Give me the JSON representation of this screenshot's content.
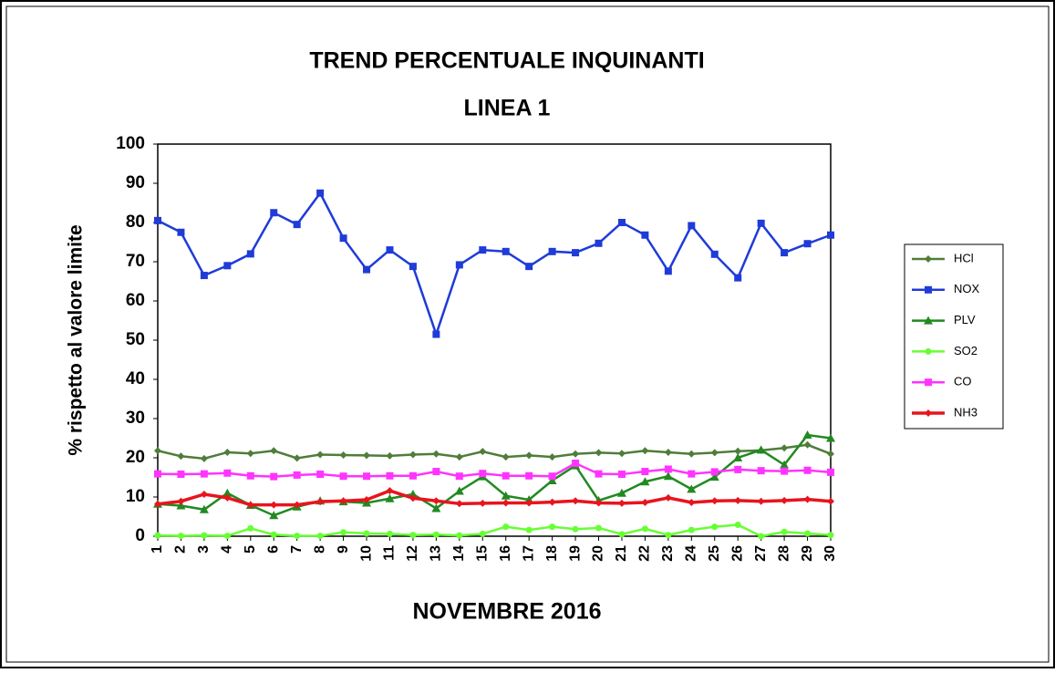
{
  "chart_data": {
    "type": "line",
    "title": "TREND PERCENTUALE INQUINANTI",
    "subtitle": "LINEA 1",
    "x_label": "NOVEMBRE 2016",
    "y_label": "% rispetto al valore limite",
    "categories": [
      "1",
      "2",
      "3",
      "4",
      "5",
      "6",
      "7",
      "8",
      "9",
      "10",
      "11",
      "12",
      "13",
      "14",
      "15",
      "16",
      "17",
      "18",
      "19",
      "20",
      "21",
      "22",
      "23",
      "24",
      "25",
      "26",
      "27",
      "28",
      "29",
      "30"
    ],
    "ylim": [
      0,
      100
    ],
    "yticks": [
      0,
      10,
      20,
      30,
      40,
      50,
      60,
      70,
      80,
      90,
      100
    ],
    "grid": false,
    "legend": "right",
    "series": [
      {
        "name": "HCl",
        "color": "#4f7d3a",
        "marker": "diamond",
        "values": [
          21.8,
          20.4,
          19.8,
          21.4,
          21.1,
          21.8,
          19.9,
          20.8,
          20.7,
          20.6,
          20.5,
          20.8,
          21,
          20.2,
          21.6,
          20.2,
          20.6,
          20.2,
          21,
          21.3,
          21.1,
          21.8,
          21.4,
          21,
          21.3,
          21.7,
          21.9,
          22.5,
          23.3,
          21
        ]
      },
      {
        "name": "NOX",
        "color": "#1f3bd8",
        "marker": "square",
        "values": [
          80.5,
          77.5,
          66.5,
          69,
          72,
          82.5,
          79.5,
          87.5,
          76,
          68,
          73,
          68.8,
          51.5,
          69.2,
          73,
          72.6,
          68.8,
          72.6,
          72.3,
          74.7,
          80,
          76.8,
          67.6,
          79.2,
          71.9,
          65.9,
          79.8,
          72.3,
          74.6,
          76.8
        ]
      },
      {
        "name": "PLV",
        "color": "#218a21",
        "marker": "triangle",
        "values": [
          8.2,
          7.8,
          6.8,
          11,
          7.9,
          5.3,
          7.5,
          9,
          8.8,
          8.5,
          9.6,
          10.7,
          7.1,
          11.5,
          15.2,
          10.3,
          9.3,
          14.2,
          18,
          9.1,
          11,
          13.9,
          15.3,
          12,
          15.1,
          20,
          22,
          18.2,
          25.8,
          25
        ]
      },
      {
        "name": "SO2",
        "color": "#66ff33",
        "marker": "circle",
        "values": [
          0.2,
          0.1,
          0.2,
          0.1,
          2,
          0.4,
          0.1,
          0.1,
          1,
          0.7,
          0.6,
          0.3,
          0.4,
          0.2,
          0.6,
          2.4,
          1.6,
          2.4,
          1.8,
          2.1,
          0.5,
          1.9,
          0.3,
          1.6,
          2.4,
          2.9,
          0,
          1.1,
          0.7,
          0.3
        ]
      },
      {
        "name": "CO",
        "color": "#ff33ff",
        "marker": "square",
        "values": [
          15.9,
          15.8,
          15.9,
          16.1,
          15.4,
          15.2,
          15.6,
          15.8,
          15.3,
          15.3,
          15.4,
          15.4,
          16.5,
          15.3,
          16,
          15.4,
          15.4,
          15.3,
          18.6,
          15.9,
          15.8,
          16.5,
          17.1,
          15.9,
          16.4,
          17,
          16.7,
          16.6,
          16.8,
          16.3
        ]
      },
      {
        "name": "NH3",
        "color": "#e8141e",
        "marker": "diamond",
        "values": [
          8.2,
          8.9,
          10.7,
          9.8,
          8,
          8,
          8,
          8.8,
          9,
          9.3,
          11.6,
          9.7,
          9,
          8.3,
          8.4,
          8.5,
          8.5,
          8.7,
          9,
          8.5,
          8.4,
          8.6,
          9.8,
          8.6,
          9,
          9.1,
          8.9,
          9.1,
          9.4,
          8.9
        ]
      }
    ]
  }
}
